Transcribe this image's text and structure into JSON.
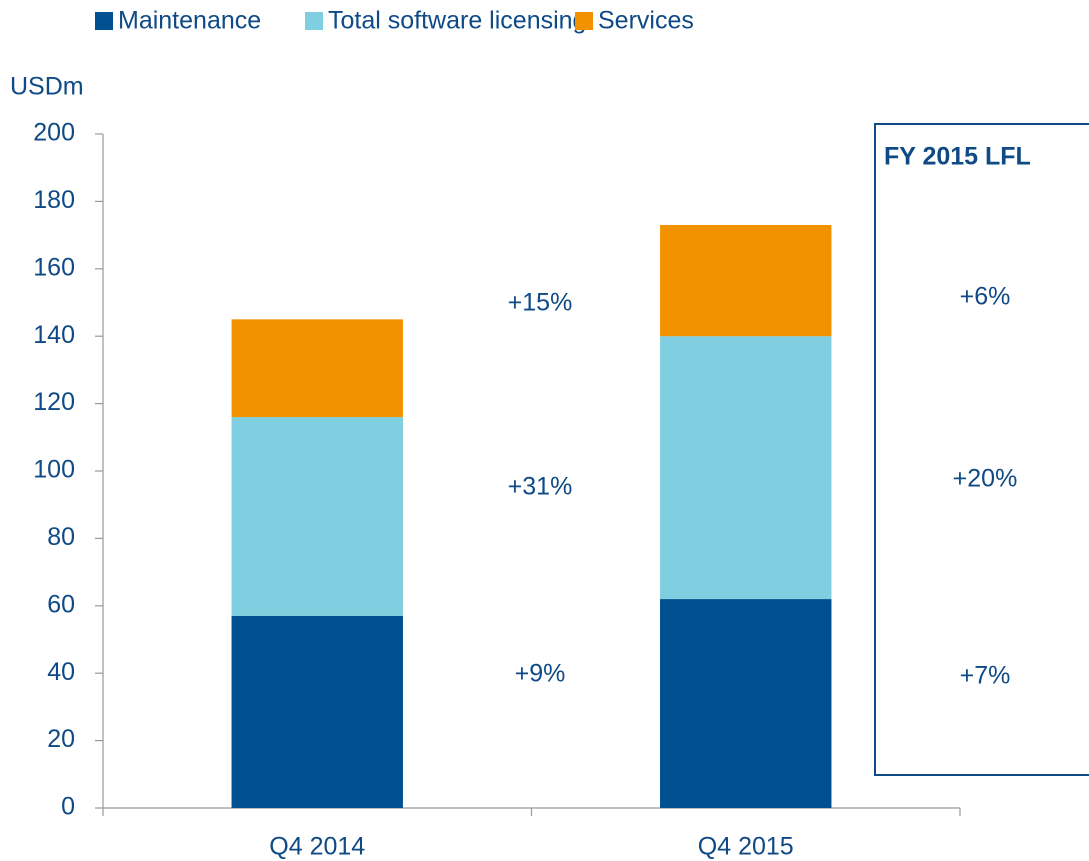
{
  "chart_data": {
    "type": "stacked_bar",
    "y_label": "USDm",
    "categories": [
      "Q4 2014",
      "Q4 2015"
    ],
    "series": [
      {
        "name": "Maintenance",
        "color": "#00508f",
        "values": [
          57,
          62
        ]
      },
      {
        "name": "Total software licensing",
        "color": "#7fcfe0",
        "values": [
          59,
          78
        ]
      },
      {
        "name": "Services",
        "color": "#f39200",
        "values": [
          29,
          33
        ]
      }
    ],
    "ylim": [
      0,
      200
    ],
    "yticks": [
      0,
      20,
      40,
      60,
      80,
      100,
      120,
      140,
      160,
      180,
      200
    ],
    "growth_labels": [
      "+9%",
      "+31%",
      "+15%"
    ],
    "box_title": "FY 2015 LFL",
    "box_labels": [
      "+7%",
      "+20%",
      "+6%"
    ]
  }
}
